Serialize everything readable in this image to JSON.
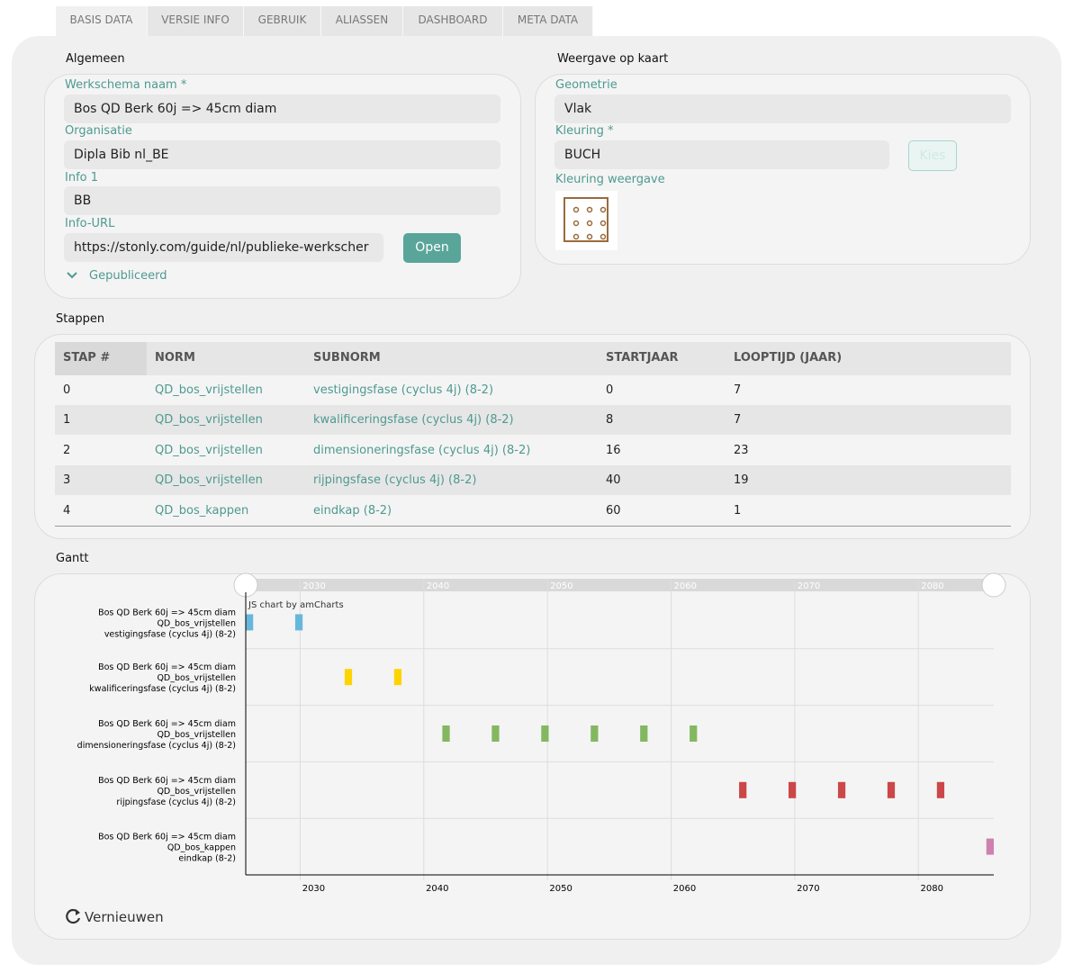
{
  "tabs": [
    "BASIS DATA",
    "VERSIE INFO",
    "GEBRUIK",
    "ALIASSEN",
    "DASHBOARD",
    "META DATA"
  ],
  "algemeen": {
    "title": "Algemeen",
    "fields": [
      {
        "label": "Werkschema naam *",
        "value": "Bos QD Berk 60j => 45cm diam"
      },
      {
        "label": "Organisatie",
        "value": "Dipla Bib nl_BE"
      },
      {
        "label": "Info 1",
        "value": "BB"
      }
    ],
    "info_url": {
      "label": "Info-URL",
      "value": "https://stonly.com/guide/nl/publieke-werkscher",
      "button": "Open"
    },
    "published": "Gepubliceerd"
  },
  "kaart": {
    "title": "Weergave op kaart",
    "geometrie_label": "Geometrie",
    "geometrie": "Vlak",
    "kleuring_label": "Kleuring *",
    "kleuring": "BUCH",
    "kies": "Kies",
    "weergave_label": "Kleuring weergave"
  },
  "stappen": {
    "title": "Stappen",
    "columns": [
      "STAP #",
      "NORM",
      "SUBNORM",
      "STARTJAAR",
      "LOOPTIJD (JAAR)"
    ],
    "rows": [
      [
        0,
        "QD_bos_vrijstellen",
        "vestigingsfase (cyclus 4j) (8-2)",
        0,
        7
      ],
      [
        1,
        "QD_bos_vrijstellen",
        "kwalificeringsfase (cyclus 4j) (8-2)",
        8,
        7
      ],
      [
        2,
        "QD_bos_vrijstellen",
        "dimensioneringsfase (cyclus 4j) (8-2)",
        16,
        23
      ],
      [
        3,
        "QD_bos_vrijstellen",
        "rijpingsfase (cyclus 4j) (8-2)",
        40,
        19
      ],
      [
        4,
        "QD_bos_kappen",
        "eindkap (8-2)",
        60,
        1
      ]
    ]
  },
  "gantt": {
    "title": "Gantt",
    "credit": "JS chart by amCharts",
    "refresh": "Vernieuwen",
    "xlim": [
      2025.6,
      2086.1
    ],
    "xticks": [
      2030,
      2040,
      2050,
      2060,
      2070,
      2080
    ],
    "rows": [
      {
        "label": [
          "Bos QD Berk 60j => 45cm diam",
          "QD_bos_vrijstellen",
          "vestigingsfase (cyclus 4j) (8-2)"
        ],
        "color": "#67b7dc",
        "bars": [
          [
            2025.6,
            2026.2
          ],
          [
            2029.6,
            2030.2
          ]
        ]
      },
      {
        "label": [
          "Bos QD Berk 60j => 45cm diam",
          "QD_bos_vrijstellen",
          "kwalificeringsfase (cyclus 4j) (8-2)"
        ],
        "color": "#fdd400",
        "bars": [
          [
            2033.6,
            2034.2
          ],
          [
            2037.6,
            2038.2
          ]
        ]
      },
      {
        "label": [
          "Bos QD Berk 60j => 45cm diam",
          "QD_bos_vrijstellen",
          "dimensioneringsfase (cyclus 4j) (8-2)"
        ],
        "color": "#84b761",
        "bars": [
          [
            2041.5,
            2042.1
          ],
          [
            2045.5,
            2046.1
          ],
          [
            2049.5,
            2050.1
          ],
          [
            2053.5,
            2054.1
          ],
          [
            2057.5,
            2058.1
          ],
          [
            2061.5,
            2062.1
          ]
        ]
      },
      {
        "label": [
          "Bos QD Berk 60j => 45cm diam",
          "QD_bos_vrijstellen",
          "rijpingsfase (cyclus 4j) (8-2)"
        ],
        "color": "#cc4748",
        "bars": [
          [
            2065.5,
            2066.1
          ],
          [
            2069.5,
            2070.1
          ],
          [
            2073.5,
            2074.1
          ],
          [
            2077.5,
            2078.1
          ],
          [
            2081.5,
            2082.1
          ]
        ]
      },
      {
        "label": [
          "Bos QD Berk 60j => 45cm diam",
          "QD_bos_kappen",
          "eindkap (8-2)"
        ],
        "color": "#cd82ad",
        "bars": [
          [
            2085.5,
            2086.1
          ]
        ]
      }
    ]
  }
}
